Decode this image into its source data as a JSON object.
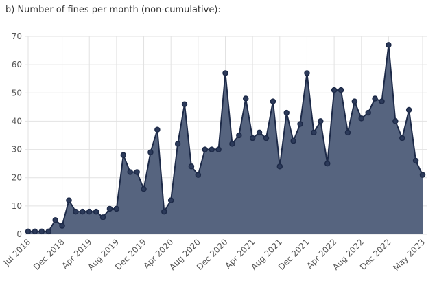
{
  "chart_data": {
    "type": "area",
    "title": "b) Number of fines per month (non-cumulative):",
    "categories": [
      "Jul 2018",
      null,
      null,
      null,
      null,
      "Dec 2018",
      null,
      null,
      null,
      "Apr 2019",
      null,
      null,
      null,
      "Aug 2019",
      null,
      null,
      null,
      "Dec 2019",
      null,
      null,
      null,
      "Apr 2020",
      null,
      null,
      null,
      "Aug 2020",
      null,
      null,
      null,
      "Dec 2020",
      null,
      null,
      null,
      "Apr 2021",
      null,
      null,
      null,
      "Aug 2021",
      null,
      null,
      null,
      "Dec 2021",
      null,
      null,
      null,
      "Apr 2022",
      null,
      null,
      null,
      "Aug 2022",
      null,
      null,
      null,
      "Dec 2022",
      null,
      null,
      null,
      null,
      "May 2023"
    ],
    "values": [
      1,
      1,
      1,
      1,
      5,
      3,
      12,
      8,
      8,
      8,
      8,
      6,
      9,
      9,
      28,
      22,
      22,
      16,
      29,
      37,
      8,
      12,
      32,
      46,
      24,
      21,
      30,
      30,
      30,
      57,
      32,
      35,
      48,
      34,
      36,
      34,
      47,
      24,
      43,
      33,
      39,
      57,
      36,
      40,
      25,
      51,
      51,
      36,
      47,
      41,
      43,
      48,
      47,
      67,
      40,
      34,
      44,
      26,
      21
    ],
    "color": "#56647f",
    "line_color": "#1d2a48",
    "ylim": [
      0,
      70
    ],
    "yticks": [
      0,
      10,
      20,
      30,
      40,
      50,
      60,
      70
    ],
    "grid": true
  }
}
